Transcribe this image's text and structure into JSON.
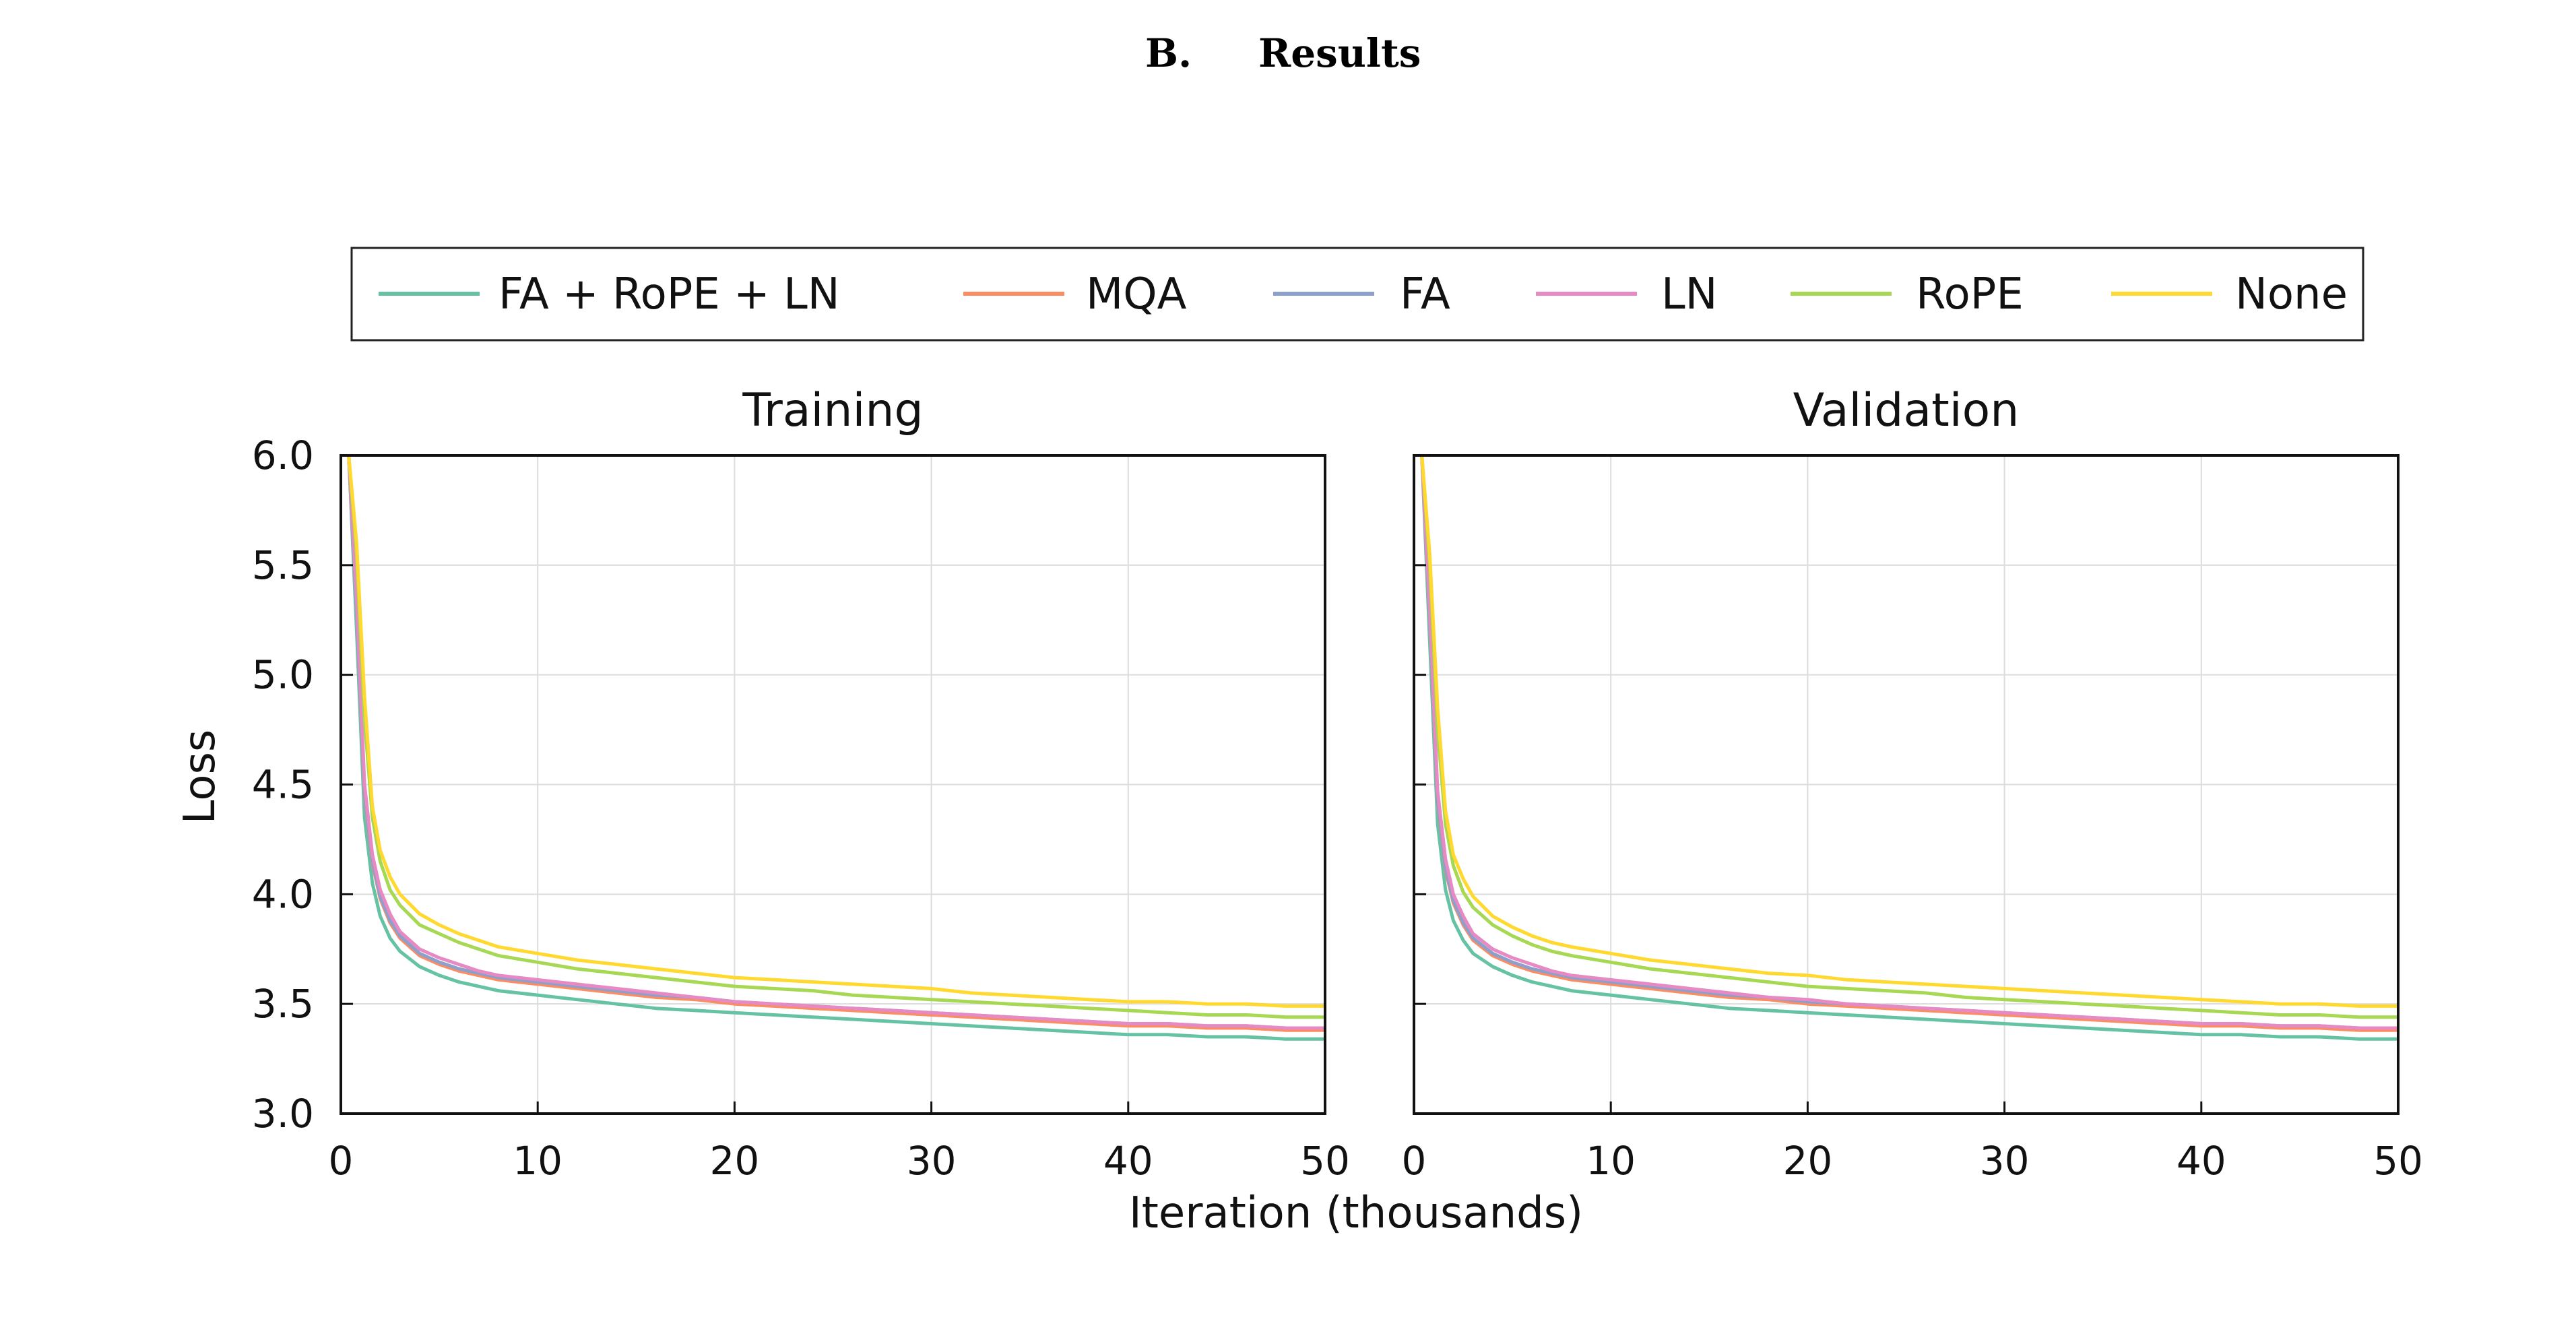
{
  "heading": {
    "number": "B.",
    "label": "Results"
  },
  "colors": {
    "FA + RoPE + LN": "#66c2a5",
    "MQA": "#fc8d62",
    "FA": "#8da0cb",
    "LN": "#e78ac3",
    "RoPE": "#a6d854",
    "None": "#ffd92f"
  },
  "legend": [
    "FA + RoPE + LN",
    "MQA",
    "FA",
    "LN",
    "RoPE",
    "None"
  ],
  "axes": {
    "xlabel": "Iteration (thousands)",
    "ylabel": "Loss"
  },
  "chart_data": [
    {
      "type": "line",
      "title": "Training",
      "xlabel": "Iteration (thousands)",
      "ylabel": "Loss",
      "xlim": [
        0,
        50
      ],
      "ylim": [
        3.0,
        6.0
      ],
      "xticks": [
        "0",
        "10",
        "20",
        "30",
        "40",
        "50"
      ],
      "yticks": [
        "3.0",
        "3.5",
        "4.0",
        "4.5",
        "5.0",
        "5.5",
        "6.0"
      ],
      "grid": true,
      "x": [
        0.4,
        0.8,
        1.2,
        1.6,
        2,
        2.5,
        3,
        4,
        5,
        6,
        7,
        8,
        10,
        12,
        14,
        16,
        18,
        20,
        22,
        24,
        26,
        28,
        30,
        32,
        34,
        36,
        38,
        40,
        42,
        44,
        46,
        48,
        50
      ],
      "series": [
        {
          "name": "FA + RoPE + LN",
          "values": [
            6.0,
            5.2,
            4.35,
            4.05,
            3.9,
            3.8,
            3.74,
            3.67,
            3.63,
            3.6,
            3.58,
            3.56,
            3.54,
            3.52,
            3.5,
            3.48,
            3.47,
            3.46,
            3.45,
            3.44,
            3.43,
            3.42,
            3.41,
            3.4,
            3.39,
            3.38,
            3.37,
            3.36,
            3.36,
            3.35,
            3.35,
            3.34,
            3.34
          ]
        },
        {
          "name": "MQA",
          "values": [
            6.0,
            5.3,
            4.45,
            4.14,
            3.98,
            3.87,
            3.8,
            3.72,
            3.68,
            3.65,
            3.63,
            3.61,
            3.59,
            3.57,
            3.55,
            3.53,
            3.52,
            3.5,
            3.49,
            3.48,
            3.47,
            3.46,
            3.45,
            3.44,
            3.43,
            3.42,
            3.41,
            3.4,
            3.4,
            3.39,
            3.39,
            3.38,
            3.38
          ]
        },
        {
          "name": "FA",
          "values": [
            6.0,
            5.3,
            4.46,
            4.15,
            3.99,
            3.88,
            3.81,
            3.73,
            3.69,
            3.66,
            3.64,
            3.62,
            3.6,
            3.58,
            3.56,
            3.54,
            3.53,
            3.51,
            3.5,
            3.49,
            3.48,
            3.47,
            3.46,
            3.45,
            3.44,
            3.43,
            3.42,
            3.41,
            3.41,
            3.4,
            3.4,
            3.39,
            3.39
          ]
        },
        {
          "name": "LN",
          "values": [
            6.0,
            5.35,
            4.5,
            4.18,
            4.02,
            3.91,
            3.83,
            3.75,
            3.71,
            3.68,
            3.65,
            3.63,
            3.61,
            3.59,
            3.57,
            3.55,
            3.53,
            3.51,
            3.5,
            3.49,
            3.48,
            3.47,
            3.46,
            3.45,
            3.44,
            3.43,
            3.42,
            3.41,
            3.41,
            3.4,
            3.4,
            3.39,
            3.39
          ]
        },
        {
          "name": "RoPE",
          "values": [
            6.0,
            5.55,
            4.8,
            4.35,
            4.15,
            4.02,
            3.95,
            3.86,
            3.82,
            3.78,
            3.75,
            3.72,
            3.69,
            3.66,
            3.64,
            3.62,
            3.6,
            3.58,
            3.57,
            3.56,
            3.54,
            3.53,
            3.52,
            3.51,
            3.5,
            3.49,
            3.48,
            3.47,
            3.46,
            3.45,
            3.45,
            3.44,
            3.44
          ]
        },
        {
          "name": "None",
          "values": [
            6.0,
            5.6,
            4.9,
            4.4,
            4.2,
            4.08,
            4.0,
            3.91,
            3.86,
            3.82,
            3.79,
            3.76,
            3.73,
            3.7,
            3.68,
            3.66,
            3.64,
            3.62,
            3.61,
            3.6,
            3.59,
            3.58,
            3.57,
            3.55,
            3.54,
            3.53,
            3.52,
            3.51,
            3.51,
            3.5,
            3.5,
            3.49,
            3.49
          ]
        }
      ]
    },
    {
      "type": "line",
      "title": "Validation",
      "xlabel": "Iteration (thousands)",
      "ylabel": "Loss",
      "xlim": [
        0,
        50
      ],
      "ylim": [
        3.0,
        6.0
      ],
      "xticks": [
        "0",
        "10",
        "20",
        "30",
        "40",
        "50"
      ],
      "yticks": [
        "3.0",
        "3.5",
        "4.0",
        "4.5",
        "5.0",
        "5.5",
        "6.0"
      ],
      "grid": true,
      "x": [
        0.4,
        0.8,
        1.2,
        1.6,
        2,
        2.5,
        3,
        4,
        5,
        6,
        7,
        8,
        10,
        12,
        14,
        16,
        18,
        20,
        22,
        24,
        26,
        28,
        30,
        32,
        34,
        36,
        38,
        40,
        42,
        44,
        46,
        48,
        50
      ],
      "series": [
        {
          "name": "FA + RoPE + LN",
          "values": [
            6.0,
            5.15,
            4.32,
            4.02,
            3.88,
            3.79,
            3.73,
            3.67,
            3.63,
            3.6,
            3.58,
            3.56,
            3.54,
            3.52,
            3.5,
            3.48,
            3.47,
            3.46,
            3.45,
            3.44,
            3.43,
            3.42,
            3.41,
            3.4,
            3.39,
            3.38,
            3.37,
            3.36,
            3.36,
            3.35,
            3.35,
            3.34,
            3.34
          ]
        },
        {
          "name": "MQA",
          "values": [
            6.0,
            5.25,
            4.42,
            4.11,
            3.96,
            3.86,
            3.79,
            3.72,
            3.68,
            3.65,
            3.63,
            3.61,
            3.59,
            3.57,
            3.55,
            3.53,
            3.52,
            3.5,
            3.49,
            3.48,
            3.47,
            3.46,
            3.45,
            3.44,
            3.43,
            3.42,
            3.41,
            3.4,
            3.4,
            3.39,
            3.39,
            3.38,
            3.38
          ]
        },
        {
          "name": "FA",
          "values": [
            6.0,
            5.26,
            4.43,
            4.12,
            3.97,
            3.87,
            3.8,
            3.73,
            3.69,
            3.66,
            3.64,
            3.62,
            3.6,
            3.58,
            3.56,
            3.54,
            3.53,
            3.51,
            3.5,
            3.49,
            3.48,
            3.47,
            3.46,
            3.45,
            3.44,
            3.43,
            3.42,
            3.41,
            3.41,
            3.4,
            3.4,
            3.39,
            3.39
          ]
        },
        {
          "name": "LN",
          "values": [
            6.0,
            5.3,
            4.47,
            4.16,
            4.0,
            3.9,
            3.82,
            3.75,
            3.71,
            3.68,
            3.65,
            3.63,
            3.61,
            3.59,
            3.57,
            3.55,
            3.53,
            3.52,
            3.5,
            3.49,
            3.48,
            3.47,
            3.46,
            3.45,
            3.44,
            3.43,
            3.42,
            3.41,
            3.41,
            3.4,
            3.4,
            3.39,
            3.39
          ]
        },
        {
          "name": "RoPE",
          "values": [
            6.0,
            5.5,
            4.75,
            4.32,
            4.13,
            4.01,
            3.94,
            3.86,
            3.81,
            3.77,
            3.74,
            3.72,
            3.69,
            3.66,
            3.64,
            3.62,
            3.6,
            3.58,
            3.57,
            3.56,
            3.55,
            3.53,
            3.52,
            3.51,
            3.5,
            3.49,
            3.48,
            3.47,
            3.46,
            3.45,
            3.45,
            3.44,
            3.44
          ]
        },
        {
          "name": "None",
          "values": [
            6.0,
            5.55,
            4.85,
            4.38,
            4.18,
            4.07,
            3.99,
            3.9,
            3.85,
            3.81,
            3.78,
            3.76,
            3.73,
            3.7,
            3.68,
            3.66,
            3.64,
            3.63,
            3.61,
            3.6,
            3.59,
            3.58,
            3.57,
            3.56,
            3.55,
            3.54,
            3.53,
            3.52,
            3.51,
            3.5,
            3.5,
            3.49,
            3.49
          ]
        }
      ]
    }
  ]
}
